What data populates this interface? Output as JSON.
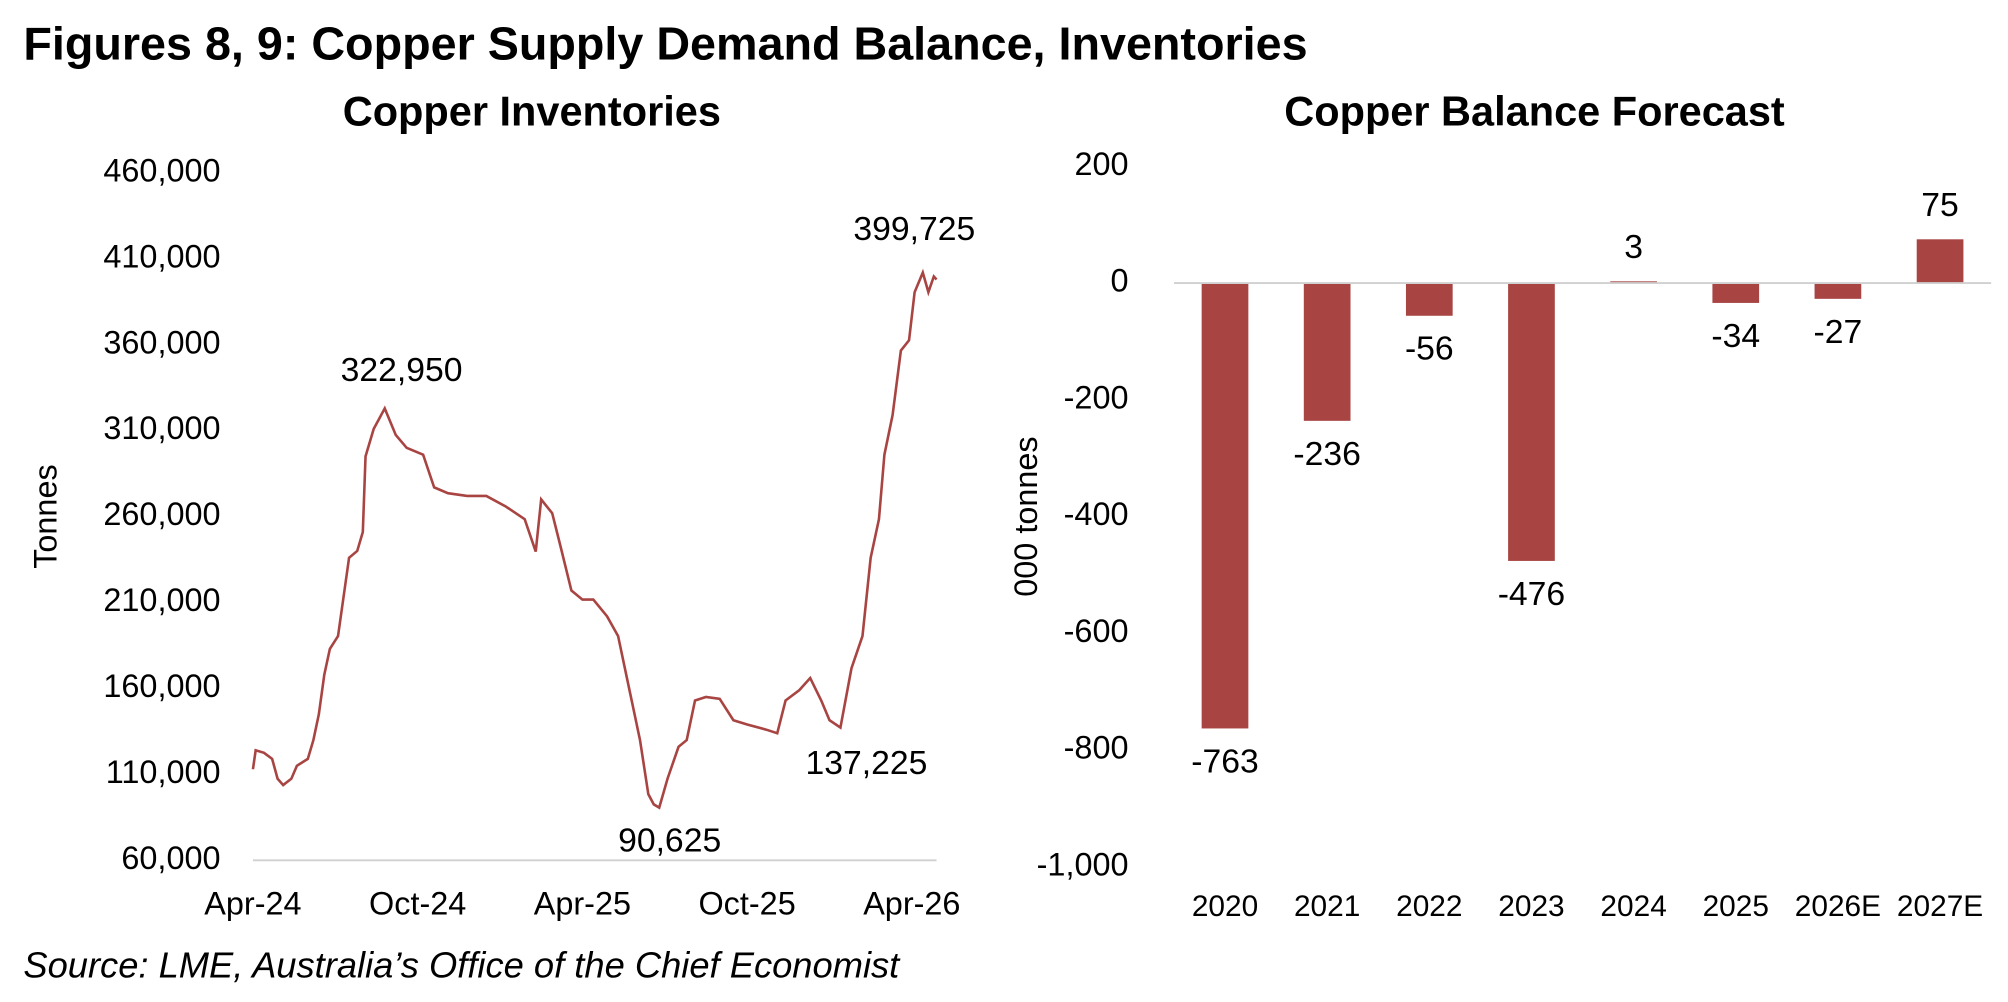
{
  "title": "Figures 8, 9: Copper Supply Demand Balance, Inventories",
  "source": "Source: LME, Australia’s Office of the Chief Economist",
  "chart_data": [
    {
      "type": "line",
      "title": "Copper Inventories",
      "ylabel": "Tonnes",
      "color": "#a84543",
      "x": [
        0,
        0.1,
        0.4,
        0.7,
        0.9,
        1.1,
        1.4,
        1.6,
        2.0,
        2.2,
        2.4,
        2.6,
        2.8,
        3.1,
        3.3,
        3.5,
        3.8,
        4.0,
        4.1,
        4.4,
        4.7,
        4.8,
        5.2,
        5.6,
        6.2,
        6.6,
        7.1,
        7.8,
        8.5,
        9.2,
        9.9,
        10.3,
        10.5,
        10.9,
        11.2,
        11.6,
        12.0,
        12.4,
        12.9,
        13.3,
        13.7,
        14.1,
        14.4,
        14.6,
        14.8,
        15.1,
        15.5,
        15.8,
        16.1,
        16.5,
        17.0,
        17.5,
        18.0,
        18.7,
        19.1,
        19.4,
        19.9,
        20.3,
        20.7,
        21.0,
        21.4,
        21.8,
        22.2,
        22.5,
        22.8,
        23.0,
        23.3,
        23.6,
        23.9,
        24.1,
        24.4,
        24.6,
        24.8,
        24.9
      ],
      "values": [
        113000,
        124000,
        122600,
        119000,
        107500,
        103800,
        107500,
        115000,
        119000,
        130000,
        145000,
        168000,
        183000,
        190500,
        213000,
        236000,
        240000,
        251000,
        295000,
        311000,
        320000,
        322950,
        307500,
        300000,
        296000,
        277000,
        273600,
        272000,
        272000,
        266000,
        258500,
        239600,
        270000,
        262000,
        243000,
        217000,
        211700,
        211700,
        202000,
        190500,
        160000,
        130000,
        98500,
        92500,
        90625,
        107500,
        126000,
        130000,
        153000,
        155000,
        154000,
        141500,
        139000,
        136000,
        134000,
        153000,
        159000,
        166000,
        153000,
        141500,
        137225,
        171700,
        190500,
        236000,
        258500,
        296000,
        319000,
        356600,
        362600,
        390600,
        402000,
        390600,
        399725,
        398000
      ],
      "xlim": [
        0,
        24.9
      ],
      "xticks": [
        {
          "value": 0,
          "label": "Apr-24"
        },
        {
          "value": 6,
          "label": "Oct-24"
        },
        {
          "value": 12,
          "label": "Apr-25"
        },
        {
          "value": 18,
          "label": "Oct-25"
        },
        {
          "value": 24,
          "label": "Apr-26"
        }
      ],
      "ylim": [
        60000,
        460000
      ],
      "yticks": [
        {
          "value": 60000,
          "label": "60,000"
        },
        {
          "value": 110000,
          "label": "110,000"
        },
        {
          "value": 160000,
          "label": "160,000"
        },
        {
          "value": 210000,
          "label": "210,000"
        },
        {
          "value": 260000,
          "label": "260,000"
        },
        {
          "value": 310000,
          "label": "310,000"
        },
        {
          "value": 360000,
          "label": "360,000"
        },
        {
          "value": 410000,
          "label": "410,000"
        },
        {
          "value": 460000,
          "label": "460,000"
        }
      ],
      "annotations": [
        {
          "label": "322,950",
          "value": 322950,
          "x": 4.8
        },
        {
          "label": "90,625",
          "value": 90625,
          "x": 14.8
        },
        {
          "label": "137,225",
          "value": 137225,
          "x": 21.4
        },
        {
          "label": "399,725",
          "value": 399725,
          "x": 24.8
        }
      ]
    },
    {
      "type": "bar",
      "title": "Copper Balance Forecast",
      "ylabel": "000 tonnes",
      "color": "#a84543",
      "categories": [
        "2020",
        "2021",
        "2022",
        "2023",
        "2024",
        "2025",
        "2026E",
        "2027E"
      ],
      "values": [
        -763,
        -236,
        -56,
        -476,
        3,
        -34,
        -27,
        75
      ],
      "ylim": [
        -1000,
        200
      ],
      "yticks": [
        {
          "value": -1000,
          "label": "-1,000"
        },
        -800,
        -600,
        -400,
        -200,
        0,
        200
      ]
    }
  ]
}
